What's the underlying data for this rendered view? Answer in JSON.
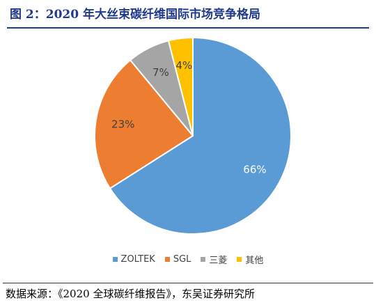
{
  "figure": {
    "title": "图 2：2020 年大丝束碳纤维国际市场竞争格局",
    "source": "数据来源：《2020 全球碳纤维报告》，东吴证券研究所"
  },
  "chart_data": {
    "type": "pie",
    "title": "图 2：2020 年大丝束碳纤维国际市场竞争格局",
    "slices": [
      {
        "name": "ZOLTEK",
        "value": 66,
        "label": "66%",
        "color": "#5b9bd5"
      },
      {
        "name": "SGL",
        "value": 23,
        "label": "23%",
        "color": "#ed7d31"
      },
      {
        "name": "三菱",
        "value": 7,
        "label": "7%",
        "color": "#a5a5a5"
      },
      {
        "name": "其他",
        "value": 4,
        "label": "4%",
        "color": "#ffc000"
      }
    ],
    "start": "12 o'clock",
    "direction": "clockwise",
    "legend_position": "bottom",
    "slice_border_color": "#ffffff"
  },
  "colors": {
    "title": "#1f3a8a",
    "label_on_blue": "#ffffff",
    "label_other": "#404040"
  }
}
